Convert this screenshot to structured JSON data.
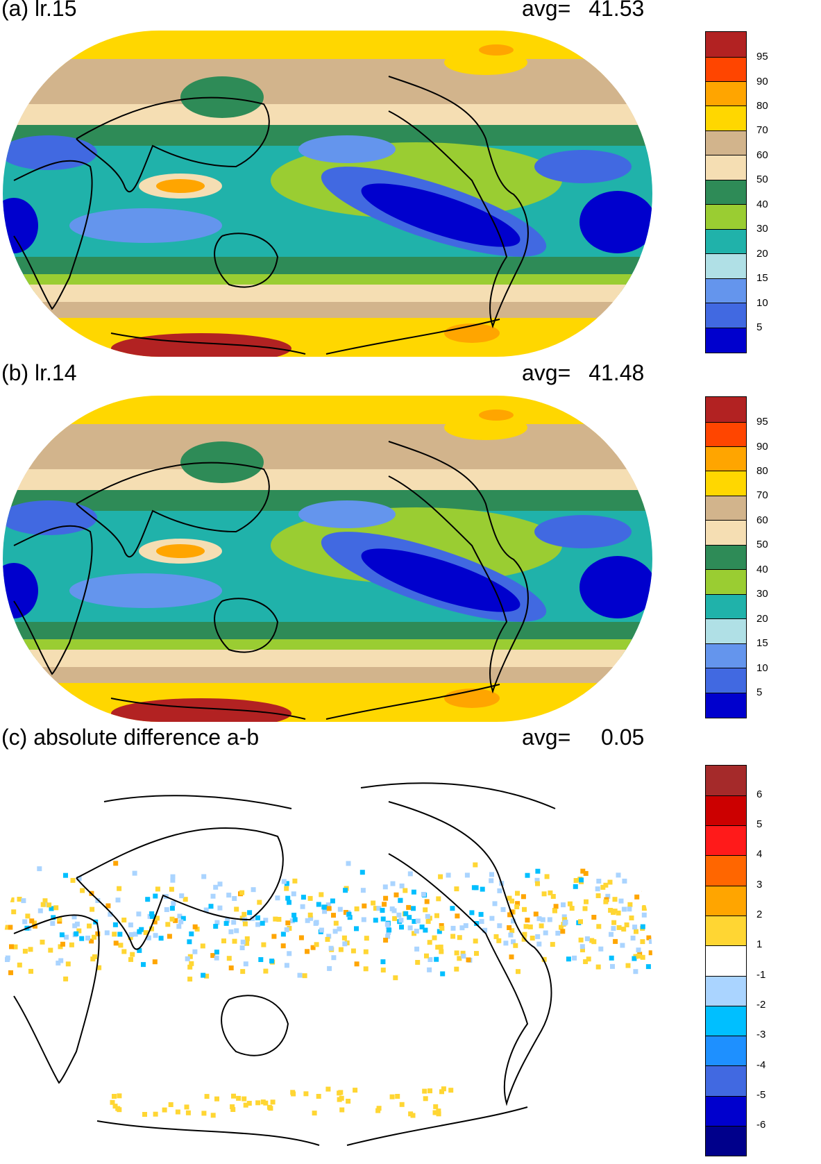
{
  "panels": [
    {
      "id": "a",
      "title": "(a) lr.15",
      "avg_label": "avg=",
      "avg_value": "41.53",
      "colorbar": {
        "labels": [
          "95",
          "90",
          "80",
          "70",
          "60",
          "50",
          "40",
          "30",
          "20",
          "15",
          "10",
          "5"
        ],
        "colors": [
          "#b22222",
          "#ff4500",
          "#ffa500",
          "#ffd700",
          "#d2b48c",
          "#f5deb3",
          "#2e8b57",
          "#9acd32",
          "#20b2aa",
          "#b0e0e6",
          "#6495ed",
          "#4169e1",
          "#0000cd"
        ]
      }
    },
    {
      "id": "b",
      "title": "(b) lr.14",
      "avg_label": "avg=",
      "avg_value": "41.48",
      "colorbar": {
        "labels": [
          "95",
          "90",
          "80",
          "70",
          "60",
          "50",
          "40",
          "30",
          "20",
          "15",
          "10",
          "5"
        ],
        "colors": [
          "#b22222",
          "#ff4500",
          "#ffa500",
          "#ffd700",
          "#d2b48c",
          "#f5deb3",
          "#2e8b57",
          "#9acd32",
          "#20b2aa",
          "#b0e0e6",
          "#6495ed",
          "#4169e1",
          "#0000cd"
        ]
      }
    },
    {
      "id": "c",
      "title": "(c) absolute difference a-b",
      "avg_label": "avg=",
      "avg_value": "0.05",
      "colorbar": {
        "labels": [
          "6",
          "5",
          "4",
          "3",
          "2",
          "1",
          "-1",
          "-2",
          "-3",
          "-4",
          "-5",
          "-6"
        ],
        "colors": [
          "#a52a2a",
          "#cc0000",
          "#ff1a1a",
          "#ff6600",
          "#ffa500",
          "#ffd633",
          "#ffffff",
          "#aad4ff",
          "#00bfff",
          "#1e90ff",
          "#4169e1",
          "#0000cd",
          "#00008b"
        ]
      }
    }
  ]
}
